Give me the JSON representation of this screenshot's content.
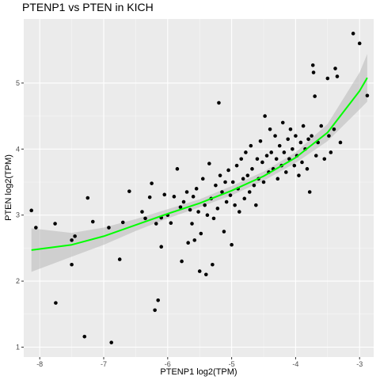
{
  "chart_data": {
    "type": "scatter",
    "title": "PTENP1 vs  PTEN in KICH",
    "xlabel": "PTENP1 log2(TPM)",
    "ylabel": "PTEN log2(TPM)",
    "xlim": [
      -8.25,
      -2.78
    ],
    "ylim": [
      0.85,
      5.97
    ],
    "x_ticks": [
      -8,
      -7,
      -6,
      -5,
      -4,
      -3
    ],
    "y_ticks": [
      1,
      2,
      3,
      4,
      5
    ],
    "x_tick_labels": [
      "-8",
      "-7",
      "-6",
      "-5",
      "-4",
      "-3"
    ],
    "y_tick_labels": [
      "1",
      "2",
      "3",
      "4",
      "5"
    ],
    "grid": true,
    "legend": "none",
    "colors": {
      "panel": "#ebebeb",
      "grid_major": "#ffffff",
      "points": "#000000",
      "fit_line": "#00ff00",
      "confidence_band": "#bdbdbd"
    },
    "series": [
      {
        "type": "points",
        "points": [
          [
            -8.13,
            3.07
          ],
          [
            -8.06,
            2.81
          ],
          [
            -7.76,
            2.87
          ],
          [
            -7.75,
            1.67
          ],
          [
            -7.5,
            2.25
          ],
          [
            -7.5,
            2.62
          ],
          [
            -7.45,
            2.68
          ],
          [
            -7.3,
            1.16
          ],
          [
            -7.25,
            3.26
          ],
          [
            -7.17,
            2.9
          ],
          [
            -6.92,
            2.81
          ],
          [
            -6.88,
            1.07
          ],
          [
            -6.75,
            2.33
          ],
          [
            -6.7,
            2.89
          ],
          [
            -6.6,
            3.36
          ],
          [
            -6.4,
            3.05
          ],
          [
            -6.35,
            2.95
          ],
          [
            -6.28,
            3.27
          ],
          [
            -6.25,
            3.48
          ],
          [
            -6.2,
            1.56
          ],
          [
            -6.18,
            2.87
          ],
          [
            -6.15,
            1.71
          ],
          [
            -6.1,
            2.52
          ],
          [
            -6.1,
            2.96
          ],
          [
            -6.05,
            3.31
          ],
          [
            -6.0,
            3.0
          ],
          [
            -5.95,
            2.88
          ],
          [
            -5.9,
            3.28
          ],
          [
            -5.85,
            3.7
          ],
          [
            -5.8,
            3.12
          ],
          [
            -5.78,
            2.3
          ],
          [
            -5.75,
            3.2
          ],
          [
            -5.7,
            3.35
          ],
          [
            -5.68,
            2.58
          ],
          [
            -5.65,
            3.08
          ],
          [
            -5.62,
            2.87
          ],
          [
            -5.6,
            3.28
          ],
          [
            -5.58,
            2.62
          ],
          [
            -5.55,
            3.4
          ],
          [
            -5.52,
            3.05
          ],
          [
            -5.5,
            2.15
          ],
          [
            -5.48,
            2.72
          ],
          [
            -5.45,
            3.55
          ],
          [
            -5.42,
            3.15
          ],
          [
            -5.4,
            2.1
          ],
          [
            -5.38,
            3.0
          ],
          [
            -5.35,
            3.78
          ],
          [
            -5.32,
            3.25
          ],
          [
            -5.3,
            2.25
          ],
          [
            -5.28,
            2.95
          ],
          [
            -5.25,
            3.45
          ],
          [
            -5.22,
            3.1
          ],
          [
            -5.2,
            4.7
          ],
          [
            -5.18,
            3.6
          ],
          [
            -5.15,
            3.35
          ],
          [
            -5.12,
            2.75
          ],
          [
            -5.1,
            3.5
          ],
          [
            -5.08,
            3.2
          ],
          [
            -5.05,
            3.68
          ],
          [
            -5.02,
            3.3
          ],
          [
            -5.0,
            2.55
          ],
          [
            -4.98,
            3.5
          ],
          [
            -4.95,
            3.15
          ],
          [
            -4.92,
            3.75
          ],
          [
            -4.9,
            3.4
          ],
          [
            -4.88,
            3.05
          ],
          [
            -4.85,
            3.85
          ],
          [
            -4.82,
            3.55
          ],
          [
            -4.8,
            3.25
          ],
          [
            -4.78,
            3.95
          ],
          [
            -4.75,
            3.6
          ],
          [
            -4.72,
            3.35
          ],
          [
            -4.7,
            4.05
          ],
          [
            -4.68,
            3.7
          ],
          [
            -4.65,
            3.45
          ],
          [
            -4.62,
            3.15
          ],
          [
            -4.6,
            3.85
          ],
          [
            -4.58,
            3.55
          ],
          [
            -4.55,
            4.12
          ],
          [
            -4.52,
            3.8
          ],
          [
            -4.5,
            3.5
          ],
          [
            -4.48,
            4.5
          ],
          [
            -4.45,
            3.9
          ],
          [
            -4.42,
            3.65
          ],
          [
            -4.4,
            4.3
          ],
          [
            -4.38,
            3.95
          ],
          [
            -4.35,
            3.7
          ],
          [
            -4.32,
            4.2
          ],
          [
            -4.3,
            3.85
          ],
          [
            -4.28,
            3.55
          ],
          [
            -4.25,
            4.05
          ],
          [
            -4.22,
            3.75
          ],
          [
            -4.2,
            4.4
          ],
          [
            -4.18,
            3.95
          ],
          [
            -4.15,
            3.65
          ],
          [
            -4.12,
            4.15
          ],
          [
            -4.1,
            3.85
          ],
          [
            -4.08,
            4.3
          ],
          [
            -4.05,
            4.0
          ],
          [
            -4.02,
            3.75
          ],
          [
            -4.0,
            4.2
          ],
          [
            -3.98,
            3.9
          ],
          [
            -3.95,
            3.6
          ],
          [
            -3.92,
            4.1
          ],
          [
            -3.9,
            3.8
          ],
          [
            -3.88,
            4.35
          ],
          [
            -3.85,
            4.0
          ],
          [
            -3.82,
            3.7
          ],
          [
            -3.8,
            4.15
          ],
          [
            -3.78,
            3.35
          ],
          [
            -3.75,
            4.2
          ],
          [
            -3.73,
            5.27
          ],
          [
            -3.72,
            5.16
          ],
          [
            -3.7,
            4.8
          ],
          [
            -3.68,
            3.9
          ],
          [
            -3.65,
            4.1
          ],
          [
            -3.6,
            4.35
          ],
          [
            -3.55,
            3.85
          ],
          [
            -3.5,
            5.07
          ],
          [
            -3.48,
            4.2
          ],
          [
            -3.45,
            3.95
          ],
          [
            -3.4,
            4.3
          ],
          [
            -3.38,
            5.22
          ],
          [
            -3.35,
            5.1
          ],
          [
            -3.3,
            4.1
          ],
          [
            -3.1,
            5.75
          ],
          [
            -3.0,
            5.6
          ],
          [
            -2.88,
            4.81
          ]
        ]
      },
      {
        "type": "fit",
        "name": "",
        "x": [
          -8.13,
          -7.5,
          -7.0,
          -6.5,
          -6.0,
          -5.5,
          -5.0,
          -4.5,
          -4.0,
          -3.5,
          -3.0,
          -2.88
        ],
        "y": [
          2.47,
          2.55,
          2.68,
          2.85,
          3.02,
          3.18,
          3.37,
          3.59,
          3.87,
          4.25,
          4.88,
          5.08
        ],
        "lower": [
          2.14,
          2.37,
          2.55,
          2.76,
          2.95,
          3.12,
          3.3,
          3.52,
          3.79,
          4.12,
          4.6,
          4.72
        ],
        "upper": [
          2.8,
          2.73,
          2.81,
          2.94,
          3.09,
          3.24,
          3.44,
          3.66,
          3.95,
          4.38,
          5.16,
          5.44
        ]
      }
    ]
  }
}
